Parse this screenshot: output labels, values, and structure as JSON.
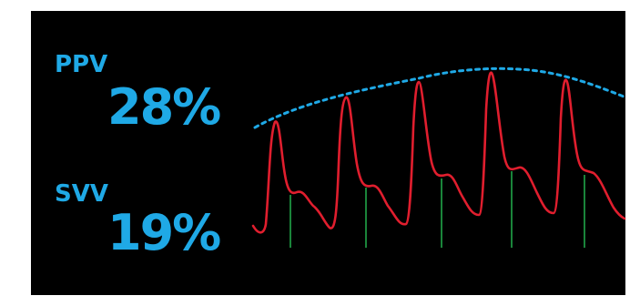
{
  "monitor": {
    "background_color": "#000000",
    "text_color": "#1fa9e6",
    "ppv": {
      "label": "PPV",
      "value": "28%"
    },
    "svv": {
      "label": "SVV",
      "value": "19%"
    }
  },
  "waveform": {
    "type": "arterial-pressure-waveform",
    "trace_color": "#e01e2e",
    "envelope_color": "#1fa9e6",
    "envelope_style": "dotted",
    "dicrotic_marker_color": "#23b04e",
    "beat_count": 5
  }
}
